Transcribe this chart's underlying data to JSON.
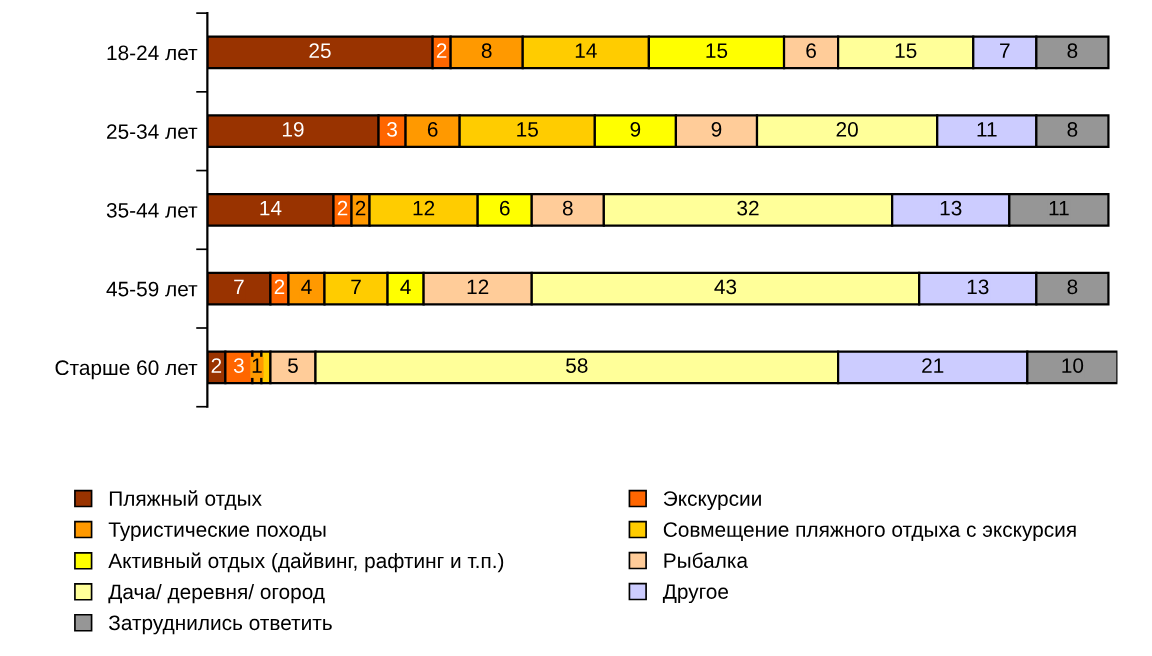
{
  "chart_data": {
    "type": "bar",
    "orientation": "horizontal",
    "stacked": true,
    "legend": "bottom",
    "grid": false,
    "categories": [
      "18-24 лет",
      "25-34 лет",
      "35-44 лет",
      "45-59 лет",
      "Старше 60 лет"
    ],
    "series": [
      {
        "name": "Пляжный отдых",
        "color": "#993300",
        "values": [
          25,
          19,
          14,
          7,
          2
        ],
        "value_labels": [
          "25",
          "19",
          "14",
          "7",
          "2"
        ]
      },
      {
        "name": "Экскурсии",
        "color": "#ff6600",
        "values": [
          2,
          3,
          2,
          2,
          3
        ],
        "value_labels": [
          "2",
          "3",
          "2",
          "2",
          "3"
        ]
      },
      {
        "name": "Туристические походы",
        "color": "#ff9900",
        "values": [
          8,
          6,
          2,
          4,
          1
        ],
        "value_labels": [
          "8",
          "6",
          "2",
          "4",
          "1"
        ]
      },
      {
        "name": "Совмещение пляжного отдыха с экскурсия",
        "color": "#ffcc00",
        "values": [
          14,
          15,
          12,
          7,
          1
        ],
        "value_labels": [
          "14",
          "15",
          "12",
          "7",
          null
        ]
      },
      {
        "name": "Активный отдых (дайвинг, рафтинг и т.п.)",
        "color": "#ffff00",
        "values": [
          15,
          9,
          6,
          4,
          null
        ],
        "value_labels": [
          "15",
          "9",
          "6",
          "4",
          null
        ]
      },
      {
        "name": "Рыбалка",
        "color": "#ffcc99",
        "values": [
          6,
          9,
          8,
          12,
          5
        ],
        "value_labels": [
          "6",
          "9",
          "8",
          "12",
          "5"
        ]
      },
      {
        "name": "Дача/ деревня/ огород",
        "color": "#ffff99",
        "values": [
          15,
          20,
          32,
          43,
          58
        ],
        "value_labels": [
          "15",
          "20",
          "32",
          "43",
          "58"
        ]
      },
      {
        "name": "Другое",
        "color": "#ccccff",
        "values": [
          7,
          11,
          13,
          13,
          21
        ],
        "value_labels": [
          "7",
          "11",
          "13",
          "13",
          "21"
        ]
      },
      {
        "name": "Затруднились ответить",
        "color": "#969696",
        "values": [
          8,
          8,
          11,
          8,
          10
        ],
        "value_labels": [
          "8",
          "8",
          "11",
          "8",
          "10"
        ]
      }
    ]
  }
}
